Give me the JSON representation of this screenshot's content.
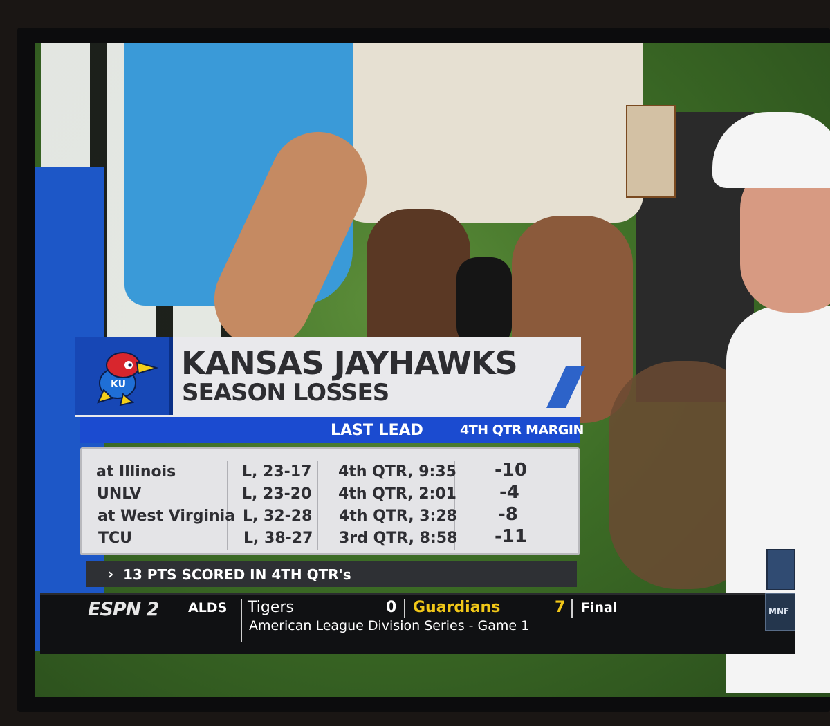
{
  "graphic": {
    "title": "KANSAS JAYHAWKS",
    "subtitle": "SEASON LOSSES",
    "columns": [
      "LAST LEAD",
      "4TH QTR MARGIN"
    ],
    "rows": [
      {
        "opponent": "at Illinois",
        "result": "L, 23-17",
        "last_lead": "4th QTR, 9:35",
        "margin": "-10"
      },
      {
        "opponent": "UNLV",
        "result": "L, 23-20",
        "last_lead": "4th QTR, 2:01",
        "margin": "-4"
      },
      {
        "opponent": "at West Virginia",
        "result": "L, 32-28",
        "last_lead": "4th QTR, 3:28",
        "margin": "-8"
      },
      {
        "opponent": "TCU",
        "result": "L, 38-27",
        "last_lead": "3rd QTR, 8:58",
        "margin": "-11"
      }
    ],
    "footnote": "13 PTS SCORED IN 4TH QTR's",
    "logo": "ku-jayhawk-logo",
    "colors": {
      "accent_blue": "#1b4bd0",
      "panel_bg": "#e4e4e7",
      "text_dark": "#2e2e33"
    }
  },
  "ticker": {
    "network": "ESPN 2",
    "league": "ALDS",
    "team1": "Tigers",
    "score1": "0",
    "team2": "Guardians",
    "score2": "7",
    "status": "Final",
    "series": "American League Division Series - Game 1",
    "badge": "MNF",
    "colors": {
      "winner": "#f2c818",
      "background": "#101113"
    }
  }
}
